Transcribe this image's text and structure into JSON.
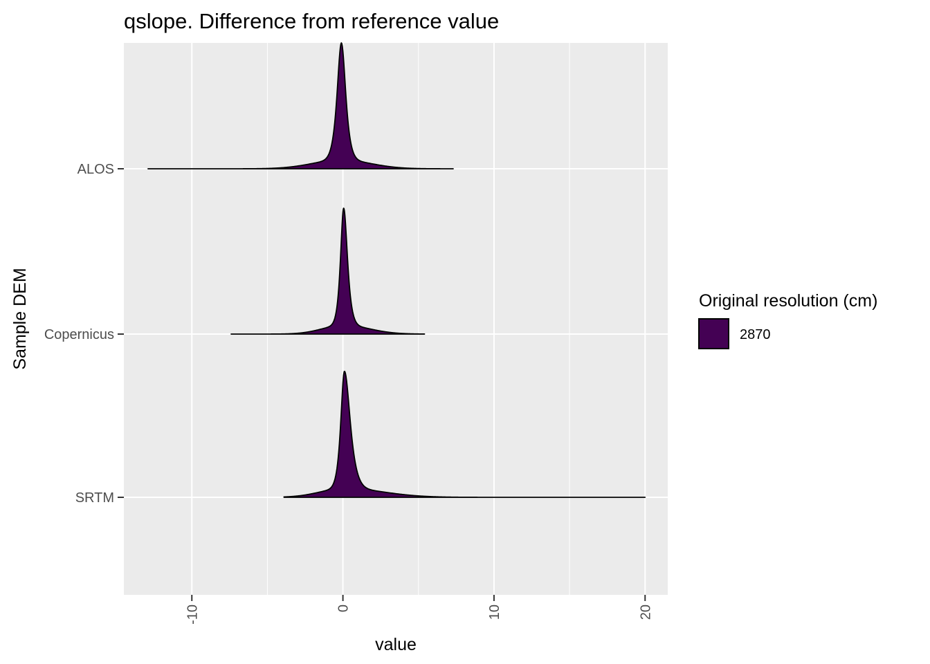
{
  "chart_data": {
    "type": "ridgeline-density",
    "title": "qslope. Difference from reference value",
    "xlabel": "value",
    "ylabel": "Sample DEM",
    "xlim": [
      -14.5,
      21.5
    ],
    "x_ticks": [
      -10,
      0,
      10,
      20
    ],
    "x_tick_labels": [
      "-10",
      "0",
      "10",
      "20"
    ],
    "categories": [
      "ALOS",
      "Copernicus",
      "SRTM"
    ],
    "grid": true,
    "colors": {
      "fill": "#440154",
      "outline": "#000000",
      "panel": "#ebebeb",
      "grid": "#ffffff"
    },
    "series": [
      {
        "name": "ALOS",
        "range": [
          -12.9,
          7.3
        ],
        "peak": -0.1,
        "sigma": 0.38,
        "skew_right": 1.0
      },
      {
        "name": "Copernicus",
        "range": [
          -7.4,
          5.4
        ],
        "peak": 0.05,
        "sigma": 0.28,
        "skew_right": 1.2
      },
      {
        "name": "SRTM",
        "range": [
          -3.9,
          20.0
        ],
        "peak": 0.1,
        "sigma": 0.32,
        "skew_right": 1.6
      }
    ],
    "legend": {
      "title": "Original resolution (cm)",
      "placement": "right",
      "items": [
        {
          "label": "2870",
          "color": "#440154"
        }
      ]
    }
  }
}
